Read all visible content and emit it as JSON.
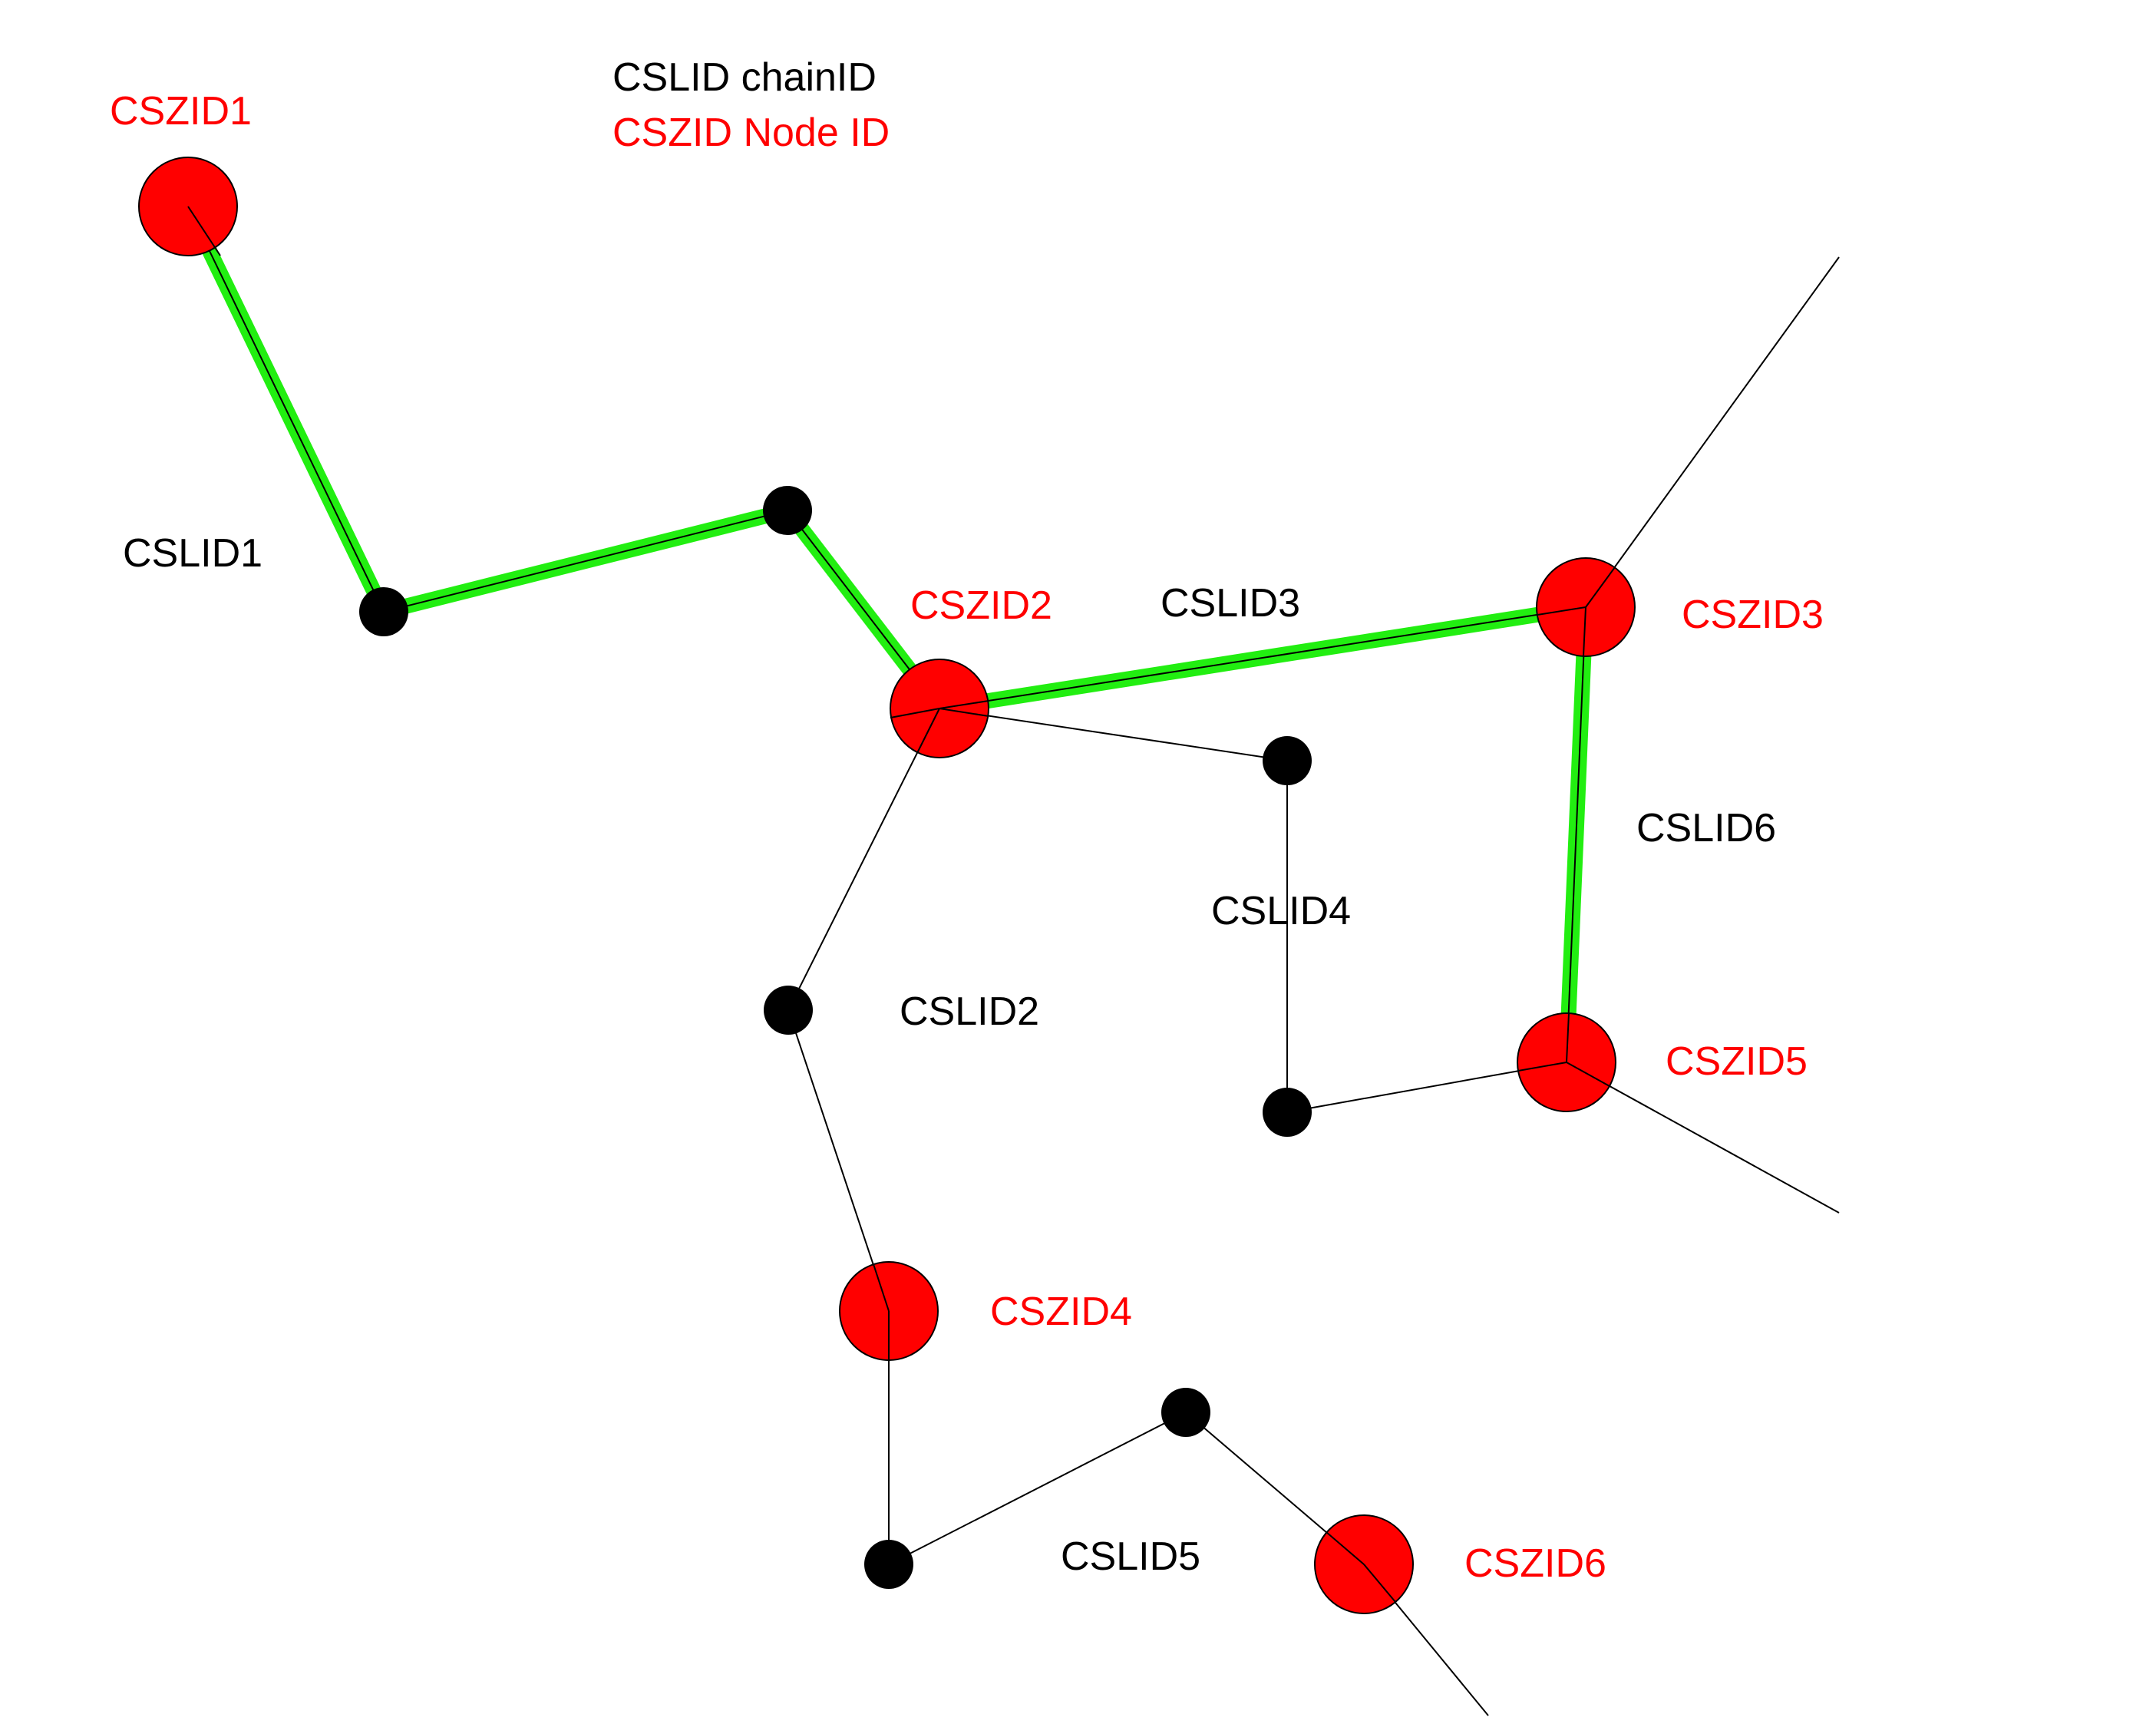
{
  "legend": {
    "chain_label": "CSLID chainID",
    "node_label": "CSZID Node ID"
  },
  "colors": {
    "zone_node": "#ff0000",
    "highlight_path": "#22ee11",
    "line": "#000000",
    "chain_text": "#000000",
    "node_text": "#ff0000"
  },
  "zone_nodes": [
    {
      "id": "n1",
      "label": "CSZID1"
    },
    {
      "id": "n2",
      "label": "CSZID2"
    },
    {
      "id": "n3",
      "label": "CSZID3"
    },
    {
      "id": "n4",
      "label": "CSZID4"
    },
    {
      "id": "n5",
      "label": "CSZID5"
    },
    {
      "id": "n6",
      "label": "CSZID6"
    }
  ],
  "chains": [
    {
      "id": "c1",
      "label": "CSLID1",
      "highlighted": true
    },
    {
      "id": "c2",
      "label": "CSLID2",
      "highlighted": false
    },
    {
      "id": "c3",
      "label": "CSLID3",
      "highlighted": true
    },
    {
      "id": "c4",
      "label": "CSLID4",
      "highlighted": false
    },
    {
      "id": "c5",
      "label": "CSLID5",
      "highlighted": false
    },
    {
      "id": "c6",
      "label": "CSLID6",
      "highlighted": true
    }
  ]
}
